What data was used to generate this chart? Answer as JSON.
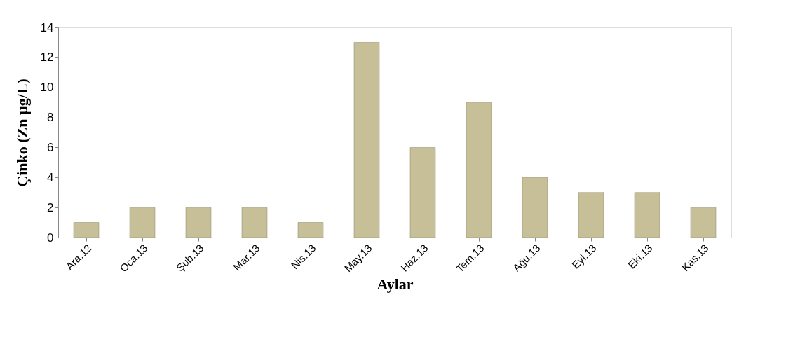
{
  "chart_data": {
    "type": "bar",
    "xlabel": "Aylar",
    "ylabel": "Çinko (Zn µg/L)",
    "categories": [
      "Ara.12",
      "Oca.13",
      "Şub.13",
      "Mar.13",
      "Nis.13",
      "May.13",
      "Haz.13",
      "Tem.13",
      "Ağu.13",
      "Eyl.13",
      "Eki.13",
      "Kas.13"
    ],
    "values": [
      1,
      2,
      2,
      2,
      1,
      13,
      6,
      9,
      4,
      3,
      3,
      2
    ],
    "color": "#c6bf98",
    "ylim": [
      0,
      14
    ],
    "yticks": [
      0,
      2,
      4,
      6,
      8,
      10,
      12,
      14
    ],
    "grid": false
  }
}
